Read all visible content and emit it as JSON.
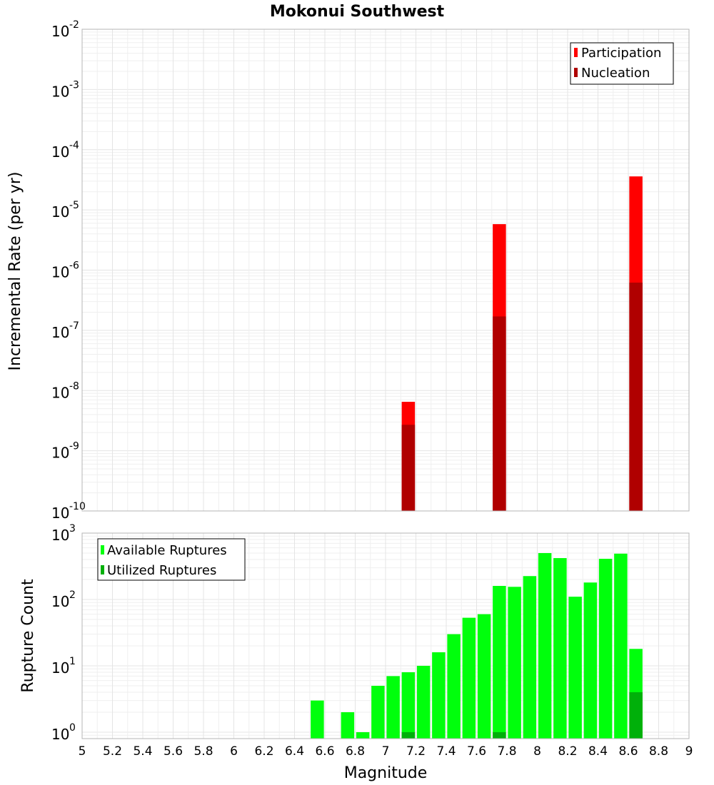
{
  "chart_data": [
    {
      "type": "bar",
      "title": "Mokonui Southwest",
      "xlabel": "",
      "ylabel": "Incremental Rate (per yr)",
      "yscale": "log",
      "ylim": [
        1e-10,
        0.01
      ],
      "xlim": [
        5,
        9
      ],
      "grid": true,
      "legend_position": "top-right",
      "y_ticks": [
        {
          "base": "10",
          "exp": "-10",
          "value": 1e-10
        },
        {
          "base": "10",
          "exp": "-9",
          "value": 1e-09
        },
        {
          "base": "10",
          "exp": "-8",
          "value": 1e-08
        },
        {
          "base": "10",
          "exp": "-7",
          "value": 1e-07
        },
        {
          "base": "10",
          "exp": "-6",
          "value": 1e-06
        },
        {
          "base": "10",
          "exp": "-5",
          "value": 1e-05
        },
        {
          "base": "10",
          "exp": "-4",
          "value": 0.0001
        },
        {
          "base": "10",
          "exp": "-3",
          "value": 0.001
        },
        {
          "base": "10",
          "exp": "-2",
          "value": 0.01
        }
      ],
      "series": [
        {
          "name": "Participation",
          "color": "#ff0000",
          "x": [
            7.15,
            7.75,
            8.65
          ],
          "values": [
            6.5e-09,
            5.8e-06,
            3.6e-05
          ]
        },
        {
          "name": "Nucleation",
          "color": "#b00000",
          "x": [
            7.15,
            7.75,
            8.65
          ],
          "values": [
            2.7e-09,
            1.7e-07,
            6.2e-07
          ]
        }
      ]
    },
    {
      "type": "bar",
      "title": "",
      "xlabel": "Magnitude",
      "ylabel": "Rupture Count",
      "yscale": "log",
      "ylim": [
        0.8,
        1000
      ],
      "xlim": [
        5,
        9
      ],
      "grid": true,
      "legend_position": "top-left",
      "x_ticks": [
        "5",
        "5.2",
        "5.4",
        "5.6",
        "5.8",
        "6",
        "6.2",
        "6.4",
        "6.6",
        "6.8",
        "7",
        "7.2",
        "7.4",
        "7.6",
        "7.8",
        "8",
        "8.2",
        "8.4",
        "8.6",
        "8.8",
        "9"
      ],
      "y_ticks": [
        {
          "base": "10",
          "exp": "0",
          "value": 1
        },
        {
          "base": "10",
          "exp": "1",
          "value": 10
        },
        {
          "base": "10",
          "exp": "2",
          "value": 100
        },
        {
          "base": "10",
          "exp": "3",
          "value": 1000
        }
      ],
      "series": [
        {
          "name": "Available Ruptures",
          "color": "#00ff0c",
          "x": [
            6.55,
            6.75,
            6.85,
            6.95,
            7.05,
            7.15,
            7.25,
            7.35,
            7.45,
            7.55,
            7.65,
            7.75,
            7.85,
            7.95,
            8.05,
            8.15,
            8.25,
            8.35,
            8.45,
            8.55,
            8.65
          ],
          "values": [
            3,
            2,
            1,
            5,
            7,
            8,
            10,
            16,
            30,
            53,
            60,
            160,
            155,
            225,
            500,
            420,
            110,
            180,
            410,
            490,
            18
          ]
        },
        {
          "name": "Utilized Ruptures",
          "color": "#00b00a",
          "x": [
            7.15,
            7.75,
            8.65
          ],
          "values": [
            1,
            1,
            4
          ]
        }
      ]
    }
  ]
}
